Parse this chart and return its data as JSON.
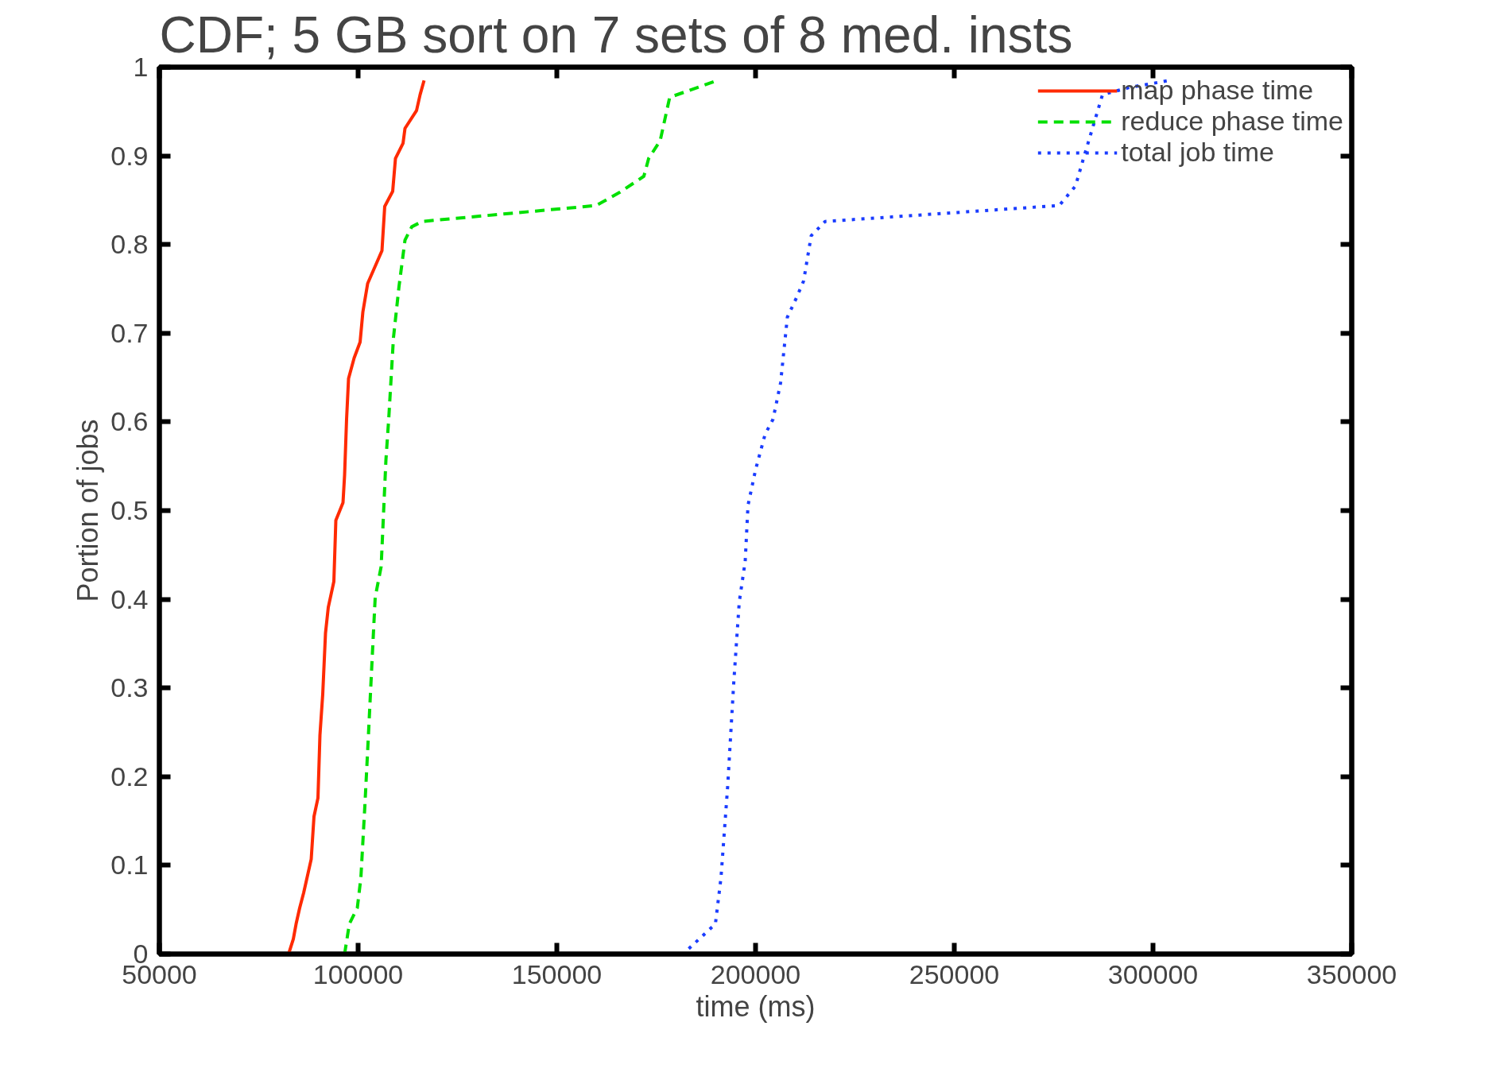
{
  "chart_data": {
    "type": "line",
    "title": "CDF; 5 GB sort on 7 sets of 8 med. insts",
    "xlabel": "time (ms)",
    "ylabel": "Portion of jobs",
    "xlim": [
      50000,
      350000
    ],
    "xticks": [
      50000,
      100000,
      150000,
      200000,
      250000,
      300000,
      350000
    ],
    "ylim": [
      0,
      1
    ],
    "yticks": [
      0,
      0.1,
      0.2,
      0.3,
      0.4,
      0.5,
      0.6,
      0.7,
      0.8,
      0.9,
      1
    ],
    "grid": false,
    "legend": "top right",
    "marker": "none",
    "series": [
      {
        "name": "map phase time",
        "color": "#ff2a00",
        "line_style": "solid",
        "x": [
          82500,
          83700,
          84400,
          85300,
          86300,
          88200,
          88900,
          89900,
          90400,
          91100,
          91800,
          92500,
          93900,
          94400,
          96200,
          96600,
          97100,
          97600,
          99000,
          100500,
          101200,
          102400,
          106000,
          106700,
          108700,
          109400,
          111300,
          111800,
          114700,
          115600,
          116600
        ],
        "values": [
          0,
          0.017,
          0.034,
          0.052,
          0.069,
          0.107,
          0.155,
          0.176,
          0.247,
          0.293,
          0.362,
          0.391,
          0.42,
          0.489,
          0.509,
          0.54,
          0.603,
          0.649,
          0.672,
          0.69,
          0.724,
          0.756,
          0.793,
          0.843,
          0.86,
          0.897,
          0.914,
          0.931,
          0.951,
          0.969,
          0.985
        ]
      },
      {
        "name": "reduce phase time",
        "color": "#00e000",
        "line_style": "dashed",
        "x": [
          96600,
          97800,
          99800,
          100700,
          101700,
          102600,
          103600,
          104300,
          105800,
          107000,
          107700,
          108900,
          110300,
          111800,
          113500,
          116100,
          159900,
          165900,
          171900,
          173100,
          176000,
          178400,
          190400
        ],
        "values": [
          0,
          0.034,
          0.052,
          0.086,
          0.167,
          0.247,
          0.339,
          0.402,
          0.437,
          0.557,
          0.603,
          0.695,
          0.753,
          0.805,
          0.82,
          0.826,
          0.844,
          0.859,
          0.877,
          0.897,
          0.917,
          0.966,
          0.985
        ]
      },
      {
        "name": "total job time",
        "color": "#1a3cff",
        "line_style": "dotted",
        "x": [
          183200,
          189900,
          191300,
          193000,
          194500,
          195900,
          197400,
          198100,
          200000,
          202400,
          204400,
          206300,
          208000,
          210400,
          212100,
          214000,
          217500,
          276400,
          280500,
          282500,
          287300,
          294000,
          304100
        ],
        "values": [
          0.006,
          0.034,
          0.086,
          0.19,
          0.305,
          0.397,
          0.443,
          0.506,
          0.546,
          0.586,
          0.603,
          0.644,
          0.718,
          0.741,
          0.759,
          0.81,
          0.826,
          0.844,
          0.866,
          0.897,
          0.969,
          0.977,
          0.985
        ]
      }
    ]
  }
}
